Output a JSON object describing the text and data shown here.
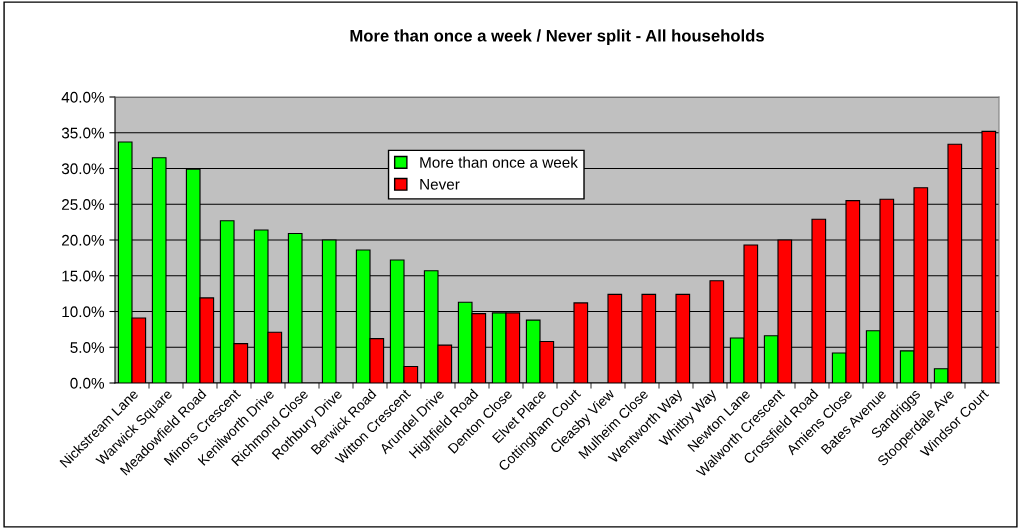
{
  "chart_data": {
    "type": "bar",
    "title": "More than once a week / Never split - All households",
    "categories": [
      "Nickstream Lane",
      "Warwick Square",
      "Meadowfield Road",
      "Minors Crescent",
      "Kenilworth Drive",
      "Richmond Close",
      "Rothbury Drive",
      "Berwick Road",
      "Witton Crescent",
      "Arundel Drive",
      "Highfield Road",
      "Denton Close",
      "Elvet Place",
      "Cottingham Court",
      "Cleasby View",
      "Mulheim Close",
      "Wentworth Way",
      "Whitby Way",
      "Newton Lane",
      "Walworth Crescent",
      "Crossfield Road",
      "Amiens Close",
      "Bates Avenue",
      "Sandriggs",
      "Stooperdale Ave",
      "Windsor Court"
    ],
    "series": [
      {
        "name": "More than once a week",
        "color": "#00ff00",
        "values": [
          33.7,
          31.5,
          29.9,
          22.7,
          21.4,
          20.9,
          20.0,
          18.6,
          17.2,
          15.7,
          11.3,
          9.8,
          8.8,
          null,
          null,
          null,
          null,
          null,
          6.3,
          6.6,
          null,
          4.2,
          7.3,
          4.5,
          2.0,
          null
        ]
      },
      {
        "name": "Never",
        "color": "#ff0000",
        "values": [
          9.1,
          null,
          11.9,
          5.5,
          7.1,
          null,
          null,
          6.2,
          2.3,
          5.3,
          9.7,
          9.8,
          5.8,
          11.2,
          12.4,
          12.4,
          12.4,
          14.3,
          19.3,
          20.0,
          22.9,
          25.5,
          25.7,
          27.3,
          33.4,
          35.2
        ]
      }
    ],
    "ylim": [
      0,
      40
    ],
    "yticks": [
      {
        "value": 0,
        "label": "0.0%"
      },
      {
        "value": 5,
        "label": "5.0%"
      },
      {
        "value": 10,
        "label": "10.0%"
      },
      {
        "value": 15,
        "label": "15.0%"
      },
      {
        "value": 20,
        "label": "20.0%"
      },
      {
        "value": 25,
        "label": "25.0%"
      },
      {
        "value": 30,
        "label": "30.0%"
      },
      {
        "value": 35,
        "label": "35.0%"
      },
      {
        "value": 40,
        "label": "40.0%"
      }
    ],
    "grid": "y",
    "legend": "top"
  }
}
